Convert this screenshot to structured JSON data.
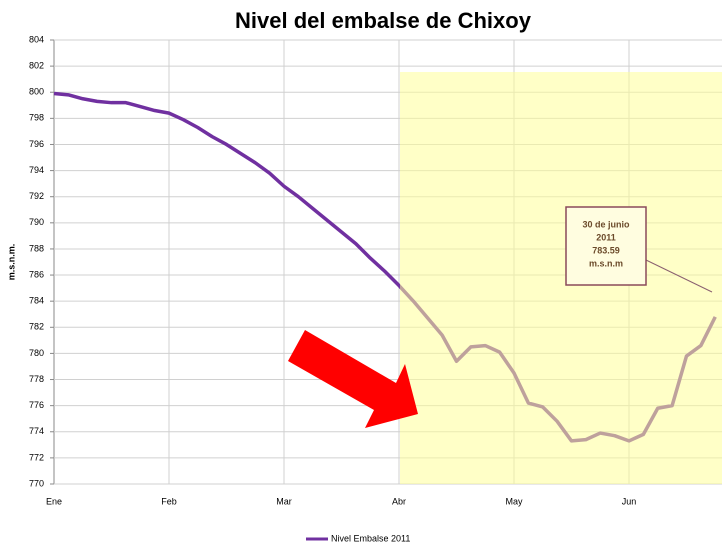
{
  "chart_data": {
    "type": "line",
    "title": "Nivel del embalse de Chixoy",
    "y_label": "m.s.n.m.",
    "categories": [
      "Ene",
      null,
      null,
      null,
      null,
      null,
      null,
      null,
      "Feb",
      null,
      null,
      null,
      null,
      null,
      null,
      null,
      "Mar",
      null,
      null,
      null,
      null,
      null,
      null,
      null,
      "Abr",
      null,
      null,
      null,
      null,
      null,
      null,
      null,
      "May",
      null,
      null,
      null,
      null,
      null,
      null,
      null,
      "Jun",
      null,
      null,
      null,
      null,
      null,
      null
    ],
    "series": [
      {
        "name": "Nivel Embalse 2011",
        "color": "#7030a0",
        "values": [
          799.9,
          799.8,
          799.5,
          799.3,
          799.2,
          799.2,
          798.9,
          798.6,
          798.4,
          797.9,
          797.3,
          796.6,
          796.0,
          795.3,
          794.6,
          793.8,
          792.8,
          792.0,
          791.1,
          790.2,
          789.3,
          788.4,
          787.3,
          786.3,
          785.2,
          784.0,
          782.7,
          781.4,
          779.4,
          780.5,
          780.6,
          780.1,
          778.5,
          776.2,
          775.9,
          774.8,
          773.3,
          773.4,
          773.9,
          773.7,
          773.3,
          773.8,
          775.8,
          776.0,
          779.8,
          780.6,
          782.8
        ]
      }
    ],
    "ylim": [
      770,
      804
    ],
    "yticks": [
      770,
      772,
      774,
      776,
      778,
      780,
      782,
      784,
      786,
      788,
      790,
      792,
      794,
      796,
      798,
      800,
      802,
      804
    ],
    "grid": true,
    "legend": "bottom",
    "annotation": [
      "30 de junio",
      "2011",
      "783.59",
      "m.s.n.m"
    ]
  }
}
